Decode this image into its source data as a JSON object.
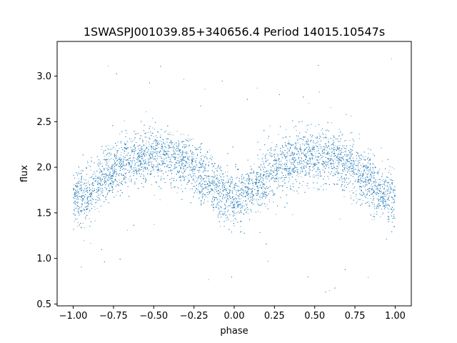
{
  "chart_data": {
    "type": "scatter",
    "title": "1SWASPJ001039.85+340656.4 Period 14015.10547s",
    "xlabel": "phase",
    "ylabel": "flux",
    "xlim": [
      -1.1,
      1.1
    ],
    "ylim": [
      0.48,
      3.38
    ],
    "xticks": [
      -1.0,
      -0.75,
      -0.5,
      -0.25,
      0.0,
      0.25,
      0.5,
      0.75,
      1.0
    ],
    "xtick_labels": [
      "−1.00",
      "−0.75",
      "−0.50",
      "−0.25",
      "0.00",
      "0.25",
      "0.50",
      "0.75",
      "1.00"
    ],
    "yticks": [
      0.5,
      1.0,
      1.5,
      2.0,
      2.5,
      3.0
    ],
    "ytick_labels": [
      "0.5",
      "1.0",
      "1.5",
      "2.0",
      "2.5",
      "3.0"
    ],
    "grid": false,
    "marker_color": "#1f77b4",
    "series": [
      {
        "phase_range": [
          -1.0,
          1.0
        ],
        "flux_minima": [
          {
            "phase": -1.0,
            "flux": 1.7
          },
          {
            "phase": 0.0,
            "flux": 1.62
          },
          {
            "phase": 1.0,
            "flux": 1.7
          }
        ],
        "flux_maxima": [
          {
            "phase": -0.55,
            "flux": 2.13
          },
          {
            "phase": 0.45,
            "flux": 2.13
          }
        ],
        "typical_scatter": 0.15,
        "outlier_range": [
          0.6,
          3.3
        ],
        "approx_points": 30000
      }
    ]
  }
}
